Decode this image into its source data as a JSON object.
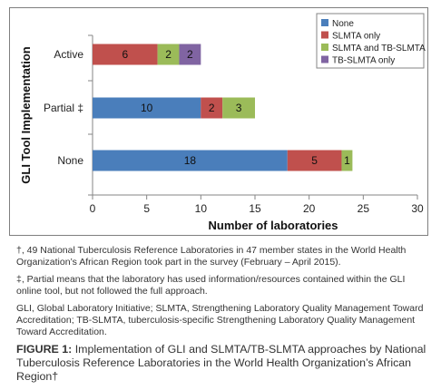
{
  "chart_data": {
    "type": "bar",
    "orientation": "horizontal",
    "stacked": true,
    "categories": [
      "Active",
      "Partial ‡",
      "None"
    ],
    "series": [
      {
        "name": "None",
        "color": "#4a7ebb",
        "values": [
          0,
          10,
          18
        ]
      },
      {
        "name": "SLMTA only",
        "color": "#c0504d",
        "values": [
          6,
          2,
          5
        ]
      },
      {
        "name": "SLMTA and TB-SLMTA",
        "color": "#9bbb59",
        "values": [
          2,
          3,
          1
        ]
      },
      {
        "name": "TB-SLMTA only",
        "color": "#8064a2",
        "values": [
          2,
          0,
          0
        ]
      }
    ],
    "xlabel": "Number of laboratories",
    "ylabel": "GLI Tool Implementation",
    "xlim": [
      0,
      30
    ],
    "xticks": [
      0,
      5,
      10,
      15,
      20,
      25,
      30
    ],
    "grid": false,
    "legend_position": "top-right",
    "data_labels": true
  },
  "notes": {
    "dagger": "†, 49 National Tuberculosis Reference Laboratories in 47 member states in the World Health Organization’s African Region took part in the survey (February – April 2015).",
    "ddagger": "‡, Partial means that the laboratory has used information/resources contained within the GLI online tool, but not followed the full approach.",
    "abbreviations": "GLI, Global Laboratory Initiative; SLMTA, Strengthening Laboratory Quality Management Toward Accreditation; TB-SLMTA, tuberculosis-specific Strengthening Laboratory Quality Management Toward Accreditation."
  },
  "caption": {
    "label": "FIGURE 1:",
    "text": " Implementation of GLI and SLMTA/TB-SLMTA approaches by National Tuberculosis Reference Laboratories in the World Health Organization’s African Region†"
  }
}
